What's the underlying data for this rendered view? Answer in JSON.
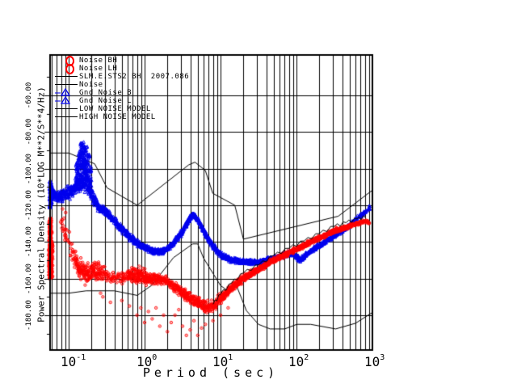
{
  "window": {
    "background": "#ffffff"
  },
  "legend": {
    "entries": [
      {
        "label": "Noise BH",
        "symbol": "red-circle"
      },
      {
        "label": "Noise LH",
        "symbol": "red-circle"
      },
      {
        "label": "SLM.E.STS2 BH  2007.086",
        "symbol": "black-line"
      },
      {
        "label": "Noise",
        "symbol": "black-line"
      },
      {
        "label": "Gnd Noise B",
        "symbol": "blue-triangle"
      },
      {
        "label": "Gnd Noise L",
        "symbol": "blue-triangle"
      },
      {
        "label": "LOW NOISE MODEL",
        "symbol": "black-line"
      },
      {
        "label": "HIGH NOISE MODEL",
        "symbol": "black-line"
      }
    ]
  },
  "chart_data": {
    "type": "scatter",
    "title": "",
    "xlabel": "Period (sec)",
    "ylabel": "Power Spectral Density (10*LOG M**2/S**4/Hz)",
    "x_scale": "log",
    "xlim": [
      0.0569,
      1000
    ],
    "ylim": [
      -199,
      -38
    ],
    "grid": "full log grid vertical, 20 dB horizontal lines",
    "legend_position": "top-left inside plot",
    "x_ticks": [
      {
        "base": "10",
        "exp": "-1",
        "value": 0.1
      },
      {
        "base": "10",
        "exp": "0",
        "value": 1
      },
      {
        "base": "10",
        "exp": "1",
        "value": 10
      },
      {
        "base": "10",
        "exp": "2",
        "value": 100
      },
      {
        "base": "10",
        "exp": "3",
        "value": 1000
      }
    ],
    "y_tick_values": [
      -60,
      -80,
      -100,
      -120,
      -140,
      -160,
      -180
    ],
    "y_tick_labels": [
      "-60.00",
      "-80.00",
      "-100.00",
      "-120.00",
      "-140.00",
      "-160.00",
      "-180.00"
    ],
    "colors": {
      "noise_red": "#ff0000",
      "gnd_noise_blue": "#0000ee",
      "models": "#000000",
      "grid": "#000000"
    },
    "series": [
      {
        "name": "high_noise_model",
        "type": "line",
        "color": "#000000",
        "points_period_db": [
          [
            0.057,
            -91.5
          ],
          [
            0.1,
            -91.5
          ],
          [
            0.22,
            -97.4
          ],
          [
            0.32,
            -110.5
          ],
          [
            0.8,
            -120
          ],
          [
            3.8,
            -98
          ],
          [
            4.6,
            -96.5
          ],
          [
            6.3,
            -101
          ],
          [
            7.9,
            -113.5
          ],
          [
            15.4,
            -120
          ],
          [
            20,
            -138.5
          ],
          [
            354.8,
            -126
          ],
          [
            1000,
            -111.8
          ]
        ]
      },
      {
        "name": "low_noise_model",
        "type": "line",
        "color": "#000000",
        "points_period_db": [
          [
            0.057,
            -168
          ],
          [
            0.1,
            -168
          ],
          [
            0.17,
            -166.7
          ],
          [
            0.4,
            -166.7
          ],
          [
            0.8,
            -169.2
          ],
          [
            1.24,
            -163.7
          ],
          [
            2.4,
            -148.6
          ],
          [
            4.3,
            -141.1
          ],
          [
            5,
            -141.1
          ],
          [
            6,
            -149
          ],
          [
            10,
            -163.8
          ],
          [
            12,
            -166.2
          ],
          [
            15.6,
            -162.1
          ],
          [
            21.9,
            -177.5
          ],
          [
            31.6,
            -185
          ],
          [
            45,
            -187.5
          ],
          [
            70,
            -187.5
          ],
          [
            101,
            -185
          ],
          [
            154,
            -185
          ],
          [
            328,
            -187.5
          ],
          [
            600,
            -184.4
          ],
          [
            1000,
            -178.5
          ]
        ]
      },
      {
        "name": "station_noise_line",
        "type": "line-jagged",
        "color": "#000000",
        "points_period_db": [
          [
            8,
            -174
          ],
          [
            10,
            -168.5
          ],
          [
            14,
            -162.5
          ],
          [
            20,
            -157
          ],
          [
            32,
            -152.5
          ],
          [
            50,
            -147.5
          ],
          [
            80,
            -143.5
          ],
          [
            126,
            -139.5
          ],
          [
            200,
            -135.5
          ],
          [
            316,
            -131.5
          ],
          [
            450,
            -129.5
          ],
          [
            630,
            -127.5
          ],
          [
            800,
            -126.5
          ]
        ]
      },
      {
        "name": "gnd_noise_blue_band",
        "type": "band",
        "marker": "triangle",
        "color": "#0000ee",
        "points_logp_db_spread_density": [
          [
            -1.245,
            -113,
            4.5,
            1
          ],
          [
            -1.15,
            -116,
            4.5,
            1
          ],
          [
            -1.05,
            -114,
            4.5,
            1
          ],
          [
            -0.95,
            -112,
            5,
            1
          ],
          [
            -0.86,
            -108,
            6,
            1
          ],
          [
            -0.78,
            -108,
            6,
            1
          ],
          [
            -0.7,
            -114,
            5,
            1
          ],
          [
            -0.6,
            -121,
            3.5,
            1
          ],
          [
            -0.5,
            -124,
            3,
            1
          ],
          [
            -0.4,
            -128,
            3,
            1
          ],
          [
            -0.3,
            -133,
            3,
            1
          ],
          [
            -0.22,
            -136,
            2.5,
            1
          ],
          [
            -0.12,
            -140,
            2.5,
            1
          ],
          [
            0,
            -143,
            2.5,
            1
          ],
          [
            0.12,
            -145,
            2,
            1
          ],
          [
            0.25,
            -145,
            2,
            1
          ],
          [
            0.38,
            -141,
            2,
            1
          ],
          [
            0.5,
            -134,
            2,
            1
          ],
          [
            0.6,
            -127,
            2,
            1
          ],
          [
            0.64,
            -125,
            2,
            1
          ],
          [
            0.7,
            -128,
            2,
            1
          ],
          [
            0.78,
            -134,
            2,
            1
          ],
          [
            0.88,
            -141,
            2,
            1
          ],
          [
            1,
            -147,
            2,
            1
          ],
          [
            1.15,
            -150,
            2,
            1
          ],
          [
            1.3,
            -151,
            1.8,
            1
          ],
          [
            1.5,
            -151,
            1.8,
            1
          ],
          [
            1.7,
            -149,
            1.8,
            1
          ],
          [
            1.85,
            -147,
            1.8,
            1
          ],
          [
            1.95,
            -146,
            1.8,
            1
          ],
          [
            2.05,
            -150,
            1.8,
            1
          ],
          [
            2.15,
            -146,
            1.6,
            1
          ],
          [
            2.3,
            -142,
            1.6,
            1
          ],
          [
            2.45,
            -138,
            1.5,
            1
          ],
          [
            2.6,
            -134,
            1.5,
            0.9
          ],
          [
            2.7,
            -131,
            1.5,
            0.7
          ],
          [
            2.8,
            -127,
            1.5,
            0.55
          ],
          [
            2.9,
            -124,
            1.5,
            0.45
          ],
          [
            2.97,
            -121,
            1.5,
            0.4
          ]
        ]
      },
      {
        "name": "noise_red_band",
        "type": "band",
        "marker": "circle",
        "color": "#ff0000",
        "points_logp_db_spread_density": [
          [
            -1.1,
            -130,
            5,
            0.18
          ],
          [
            -1.02,
            -136,
            6,
            0.22
          ],
          [
            -0.95,
            -146,
            7,
            0.5
          ],
          [
            -0.88,
            -153,
            8,
            0.9
          ],
          [
            -0.8,
            -157,
            9,
            1
          ],
          [
            -0.72,
            -157,
            9,
            1
          ],
          [
            -0.64,
            -156,
            8,
            0.9
          ],
          [
            -0.55,
            -157,
            6,
            0.5
          ],
          [
            -0.45,
            -159,
            5,
            0.4
          ],
          [
            -0.35,
            -160,
            5,
            0.4
          ],
          [
            -0.25,
            -159,
            5,
            0.6
          ],
          [
            -0.15,
            -158,
            6,
            0.9
          ],
          [
            -0.05,
            -159,
            6,
            1
          ],
          [
            0.05,
            -160,
            6,
            1
          ],
          [
            0.15,
            -160,
            5,
            0.9
          ],
          [
            0.25,
            -161,
            4,
            0.7
          ],
          [
            0.35,
            -163,
            4,
            0.7
          ],
          [
            0.45,
            -166,
            4,
            0.7
          ],
          [
            0.55,
            -169,
            4.5,
            0.8
          ],
          [
            0.65,
            -172,
            5,
            0.8
          ],
          [
            0.75,
            -174,
            5,
            0.8
          ],
          [
            0.85,
            -176,
            5,
            0.7
          ],
          [
            0.95,
            -173,
            4,
            0.8
          ],
          [
            1.05,
            -169,
            3.5,
            0.9
          ],
          [
            1.15,
            -165,
            3,
            1
          ],
          [
            1.3,
            -160,
            2.5,
            1
          ],
          [
            1.5,
            -155,
            2,
            1
          ],
          [
            1.7,
            -150,
            2,
            1
          ],
          [
            1.9,
            -146,
            1.8,
            1
          ],
          [
            2.1,
            -142,
            1.8,
            1
          ],
          [
            2.3,
            -138,
            1.6,
            1
          ],
          [
            2.5,
            -134,
            1.6,
            1
          ],
          [
            2.65,
            -132,
            1.5,
            0.9
          ],
          [
            2.8,
            -130,
            1.5,
            0.5
          ],
          [
            2.9,
            -129,
            1.5,
            0.35
          ],
          [
            2.97,
            -129,
            1.5,
            0.3
          ]
        ]
      },
      {
        "name": "blue_spike_columns",
        "type": "columns",
        "marker": "triangle",
        "color": "#0000ee",
        "columns_logp_top_bottom_n": [
          [
            -1.24,
            -107,
            -122,
            60
          ],
          [
            -1.23,
            -109,
            -120,
            40
          ],
          [
            -0.89,
            -95,
            -112,
            35
          ],
          [
            -0.86,
            -90,
            -110,
            40
          ],
          [
            -0.83,
            -86,
            -108,
            50
          ],
          [
            -0.8,
            -85,
            -106,
            50
          ],
          [
            -0.77,
            -88,
            -106,
            45
          ],
          [
            -0.74,
            -92,
            -108,
            35
          ],
          [
            -0.71,
            -99,
            -112,
            25
          ]
        ]
      },
      {
        "name": "red_left_columns",
        "type": "columns",
        "marker": "circle",
        "color": "#ff0000",
        "columns_logp_top_bottom_n": [
          [
            -1.245,
            -127,
            -160,
            220
          ],
          [
            -1.235,
            -134,
            -158,
            120
          ],
          [
            -1.225,
            -140,
            -160,
            60
          ]
        ]
      },
      {
        "name": "red_outlier_circles",
        "type": "points",
        "marker": "circle",
        "color": "#ff0000",
        "points_logp_db": [
          [
            -1.08,
            -122
          ],
          [
            -1.06,
            -127
          ],
          [
            -1.07,
            -133
          ],
          [
            -1.05,
            -139
          ],
          [
            -1.09,
            -128
          ],
          [
            -1.04,
            -124
          ],
          [
            -0.58,
            -168
          ],
          [
            -0.55,
            -170
          ],
          [
            -0.45,
            -173
          ],
          [
            -0.3,
            -172
          ],
          [
            -0.2,
            -175
          ],
          [
            -0.1,
            -180
          ],
          [
            -0.05,
            -176
          ],
          [
            0.0,
            -184
          ],
          [
            0.05,
            -178
          ],
          [
            0.1,
            -182
          ],
          [
            0.15,
            -176
          ],
          [
            0.2,
            -186
          ],
          [
            0.25,
            -180
          ],
          [
            0.3,
            -189
          ],
          [
            0.35,
            -184
          ],
          [
            0.4,
            -180
          ],
          [
            0.45,
            -177
          ],
          [
            0.5,
            -186
          ],
          [
            0.55,
            -191
          ],
          [
            0.6,
            -188
          ],
          [
            0.65,
            -183
          ],
          [
            0.7,
            -191
          ],
          [
            0.75,
            -187
          ],
          [
            0.8,
            -185
          ],
          [
            0.9,
            -183
          ],
          [
            1.0,
            -180
          ],
          [
            1.1,
            -176
          ]
        ]
      }
    ]
  }
}
